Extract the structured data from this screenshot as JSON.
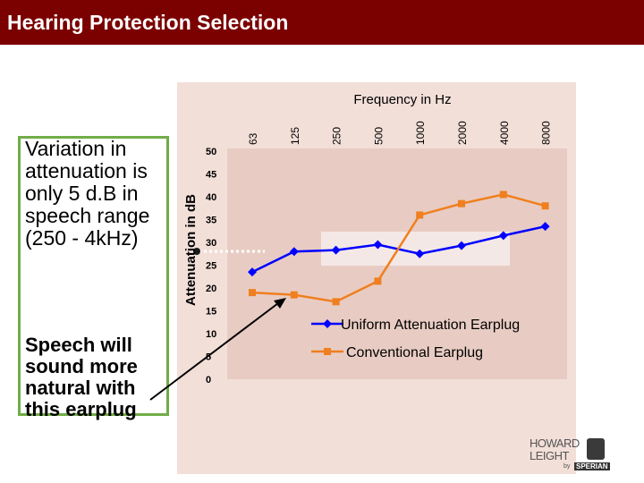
{
  "header": {
    "title": "Hearing Protection Selection"
  },
  "notes": {
    "variation": "Variation in attenuation is only 5 d.B in speech range (250 - 4kHz)",
    "speech": "Speech will sound more natural with this earplug"
  },
  "logo": {
    "line1": "HOWARD",
    "line2": "LEIGHT",
    "by": "by",
    "brand": "SPERIAN"
  },
  "colors": {
    "title_bar": "#7b0000",
    "uniform": "#0000ff",
    "conventional": "#f07f1f",
    "note_border": "#70ad47"
  },
  "chart_data": {
    "type": "line",
    "title": "",
    "xlabel": "Frequency in Hz",
    "ylabel": "Attenuation in dB",
    "categories": [
      "63",
      "125",
      "250",
      "500",
      "1000",
      "2000",
      "4000",
      "8000"
    ],
    "y_ticks": [
      "50",
      "45",
      "40",
      "35",
      "30",
      "25",
      "20",
      "15",
      "10",
      "5",
      "0"
    ],
    "ylim": [
      0,
      50
    ],
    "series": [
      {
        "name": "Uniform Attenuation Earplug",
        "values": [
          23.5,
          28,
          28.3,
          29.5,
          27.5,
          29.3,
          31.5,
          33.5
        ]
      },
      {
        "name": "Conventional Earplug",
        "values": [
          19,
          18.5,
          17,
          21.5,
          36,
          38.5,
          40.5,
          38
        ]
      }
    ],
    "legend": "right",
    "grid": false
  }
}
